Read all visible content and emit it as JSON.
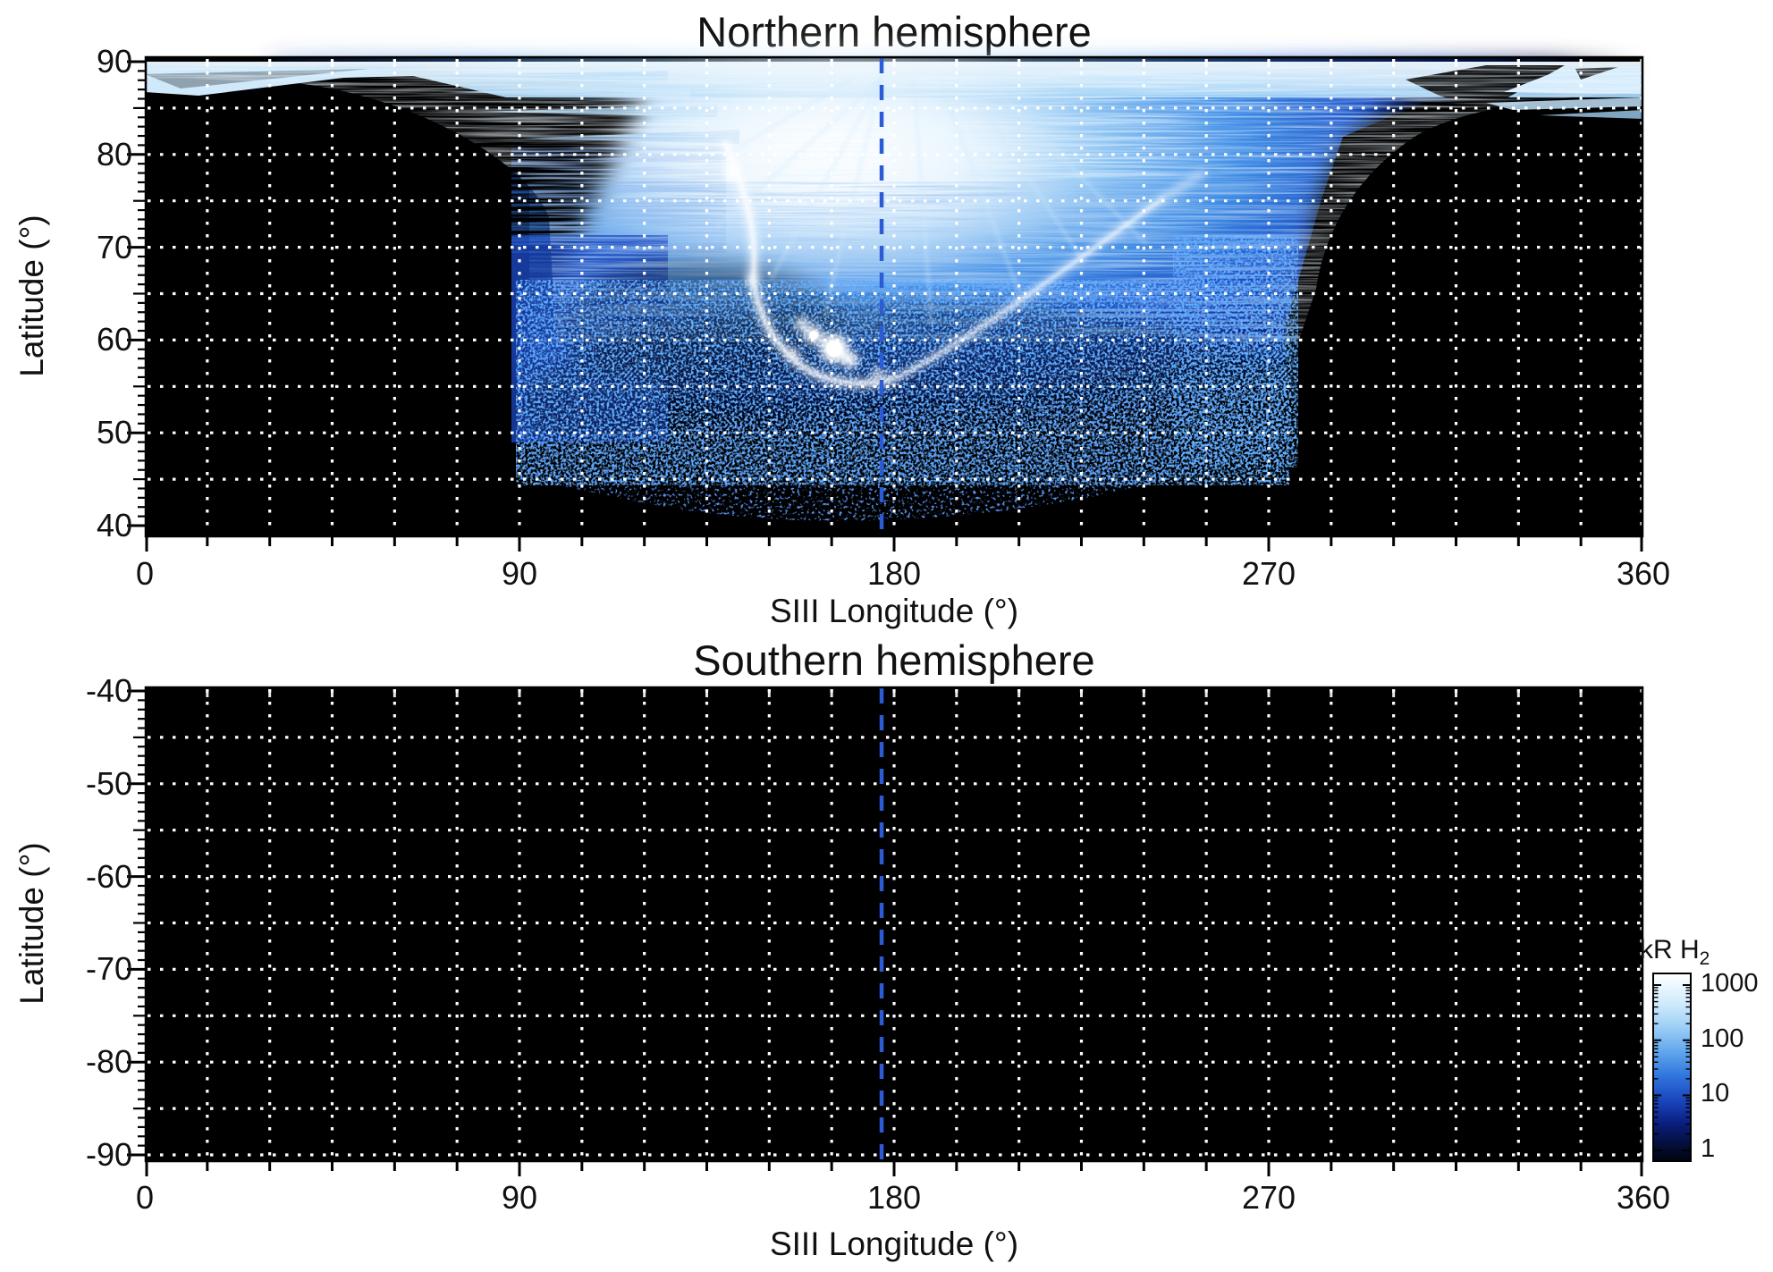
{
  "figure": {
    "panels": [
      {
        "id": "north",
        "title": "Northern hemisphere",
        "xlabel": "SIII Longitude (°)",
        "ylabel": "Latitude (°)",
        "x_tick_labels": [
          "0",
          "90",
          "180",
          "270",
          "360"
        ],
        "x_tick_values": [
          0,
          90,
          180,
          270,
          360
        ],
        "y_tick_labels": [
          "90",
          "80",
          "70",
          "60",
          "50",
          "40"
        ],
        "y_tick_values": [
          90,
          80,
          70,
          60,
          50,
          40
        ],
        "y_grid_values": [
          85,
          80,
          75,
          70,
          65,
          60,
          55,
          50,
          45
        ],
        "x_grid_step_deg": 15,
        "x_minor_tick_step_deg": 15,
        "y_minor_tick_step_deg": 1,
        "grid_color": "#ffffff",
        "reference_line": {
          "longitude_deg": 177,
          "color": "#2b5cd6",
          "style": "dashed"
        }
      },
      {
        "id": "south",
        "title": "Southern hemisphere",
        "xlabel": "SIII Longitude (°)",
        "ylabel": "Latitude (°)",
        "x_tick_labels": [
          "0",
          "90",
          "180",
          "270",
          "360"
        ],
        "x_tick_values": [
          0,
          90,
          180,
          270,
          360
        ],
        "y_tick_labels": [
          "-40",
          "-50",
          "-60",
          "-70",
          "-80",
          "-90"
        ],
        "y_tick_values": [
          -40,
          -50,
          -60,
          -70,
          -80,
          -90
        ],
        "y_grid_values": [
          -45,
          -50,
          -55,
          -60,
          -65,
          -70,
          -75,
          -80,
          -85,
          -90
        ],
        "x_grid_step_deg": 15,
        "x_minor_tick_step_deg": 15,
        "y_minor_tick_step_deg": 1,
        "grid_color": "#ffffff",
        "reference_line": {
          "longitude_deg": 177,
          "color": "#2b5cd6",
          "style": "dashed"
        }
      }
    ],
    "colorbar": {
      "title_main": "kR H",
      "title_sub": "2",
      "tick_labels": [
        "1000",
        "100",
        "10",
        "1"
      ],
      "tick_values": [
        1000,
        100,
        10,
        1
      ],
      "scale": "log",
      "gradient_top_to_bottom": [
        "#ffffff",
        "#cfeafb",
        "#8cc4f2",
        "#3f86e2",
        "#1a45bd",
        "#0a1f7e",
        "#040f3e",
        "#01040f"
      ]
    }
  },
  "chart_data": {
    "type": "heatmap",
    "panels": [
      {
        "title": "Northern hemisphere",
        "xlabel": "SIII Longitude (°)",
        "ylabel": "Latitude (°)",
        "xlim": [
          0,
          360
        ],
        "ylim": [
          40,
          90
        ],
        "x_tick_labels": [
          0,
          90,
          180,
          270,
          360
        ],
        "y_tick_labels": [
          90,
          80,
          70,
          60,
          50,
          40
        ],
        "grid": "white dotted, 15 deg in longitude by 5 deg in latitude",
        "reference_line_longitude_deg": 177,
        "features": [
          "Bright H2 auroral emission fills longitudes ~60-285 deg poleward of ~50 deg latitude; black (no signal) elsewhere",
          "Pale striated polar-cap band along 85-90 deg latitude across nearly all longitudes, with hatched wedges near 0-60 deg and 300-360 deg longitude",
          "Sharp vertical emission edge near 90 deg longitude (latitudes ~50-80) and near 272 deg longitude (latitudes ~60-77)",
          "Brightest white ridge from ~(150 deg, 80 deg) curving down to ~(175 deg, 56 deg) with intense white spots near (160-175 deg, 58-62 deg)",
          "Thin bright arc from ~(197 deg, 61 deg) rising to ~(250 deg, 78 deg)",
          "Speckled faint emission extends down to ~48 deg latitude between ~95 and ~270 deg longitude"
        ]
      },
      {
        "title": "Southern hemisphere",
        "xlabel": "SIII Longitude (°)",
        "ylabel": "Latitude (°)",
        "xlim": [
          0,
          360
        ],
        "ylim": [
          -90,
          -40
        ],
        "x_tick_labels": [
          0,
          90,
          180,
          270,
          360
        ],
        "y_tick_labels": [
          -40,
          -50,
          -60,
          -70,
          -80,
          -90
        ],
        "grid": "white dotted, 15 deg in longitude by 5 deg in latitude",
        "reference_line_longitude_deg": 177,
        "features": [
          "No detectable emission - panel entirely black (below ~1 kR)"
        ]
      }
    ],
    "colorbar": {
      "label": "kR H2",
      "scale": "log",
      "ticks": [
        1,
        10,
        100,
        1000
      ],
      "range": [
        1,
        1000
      ]
    }
  }
}
